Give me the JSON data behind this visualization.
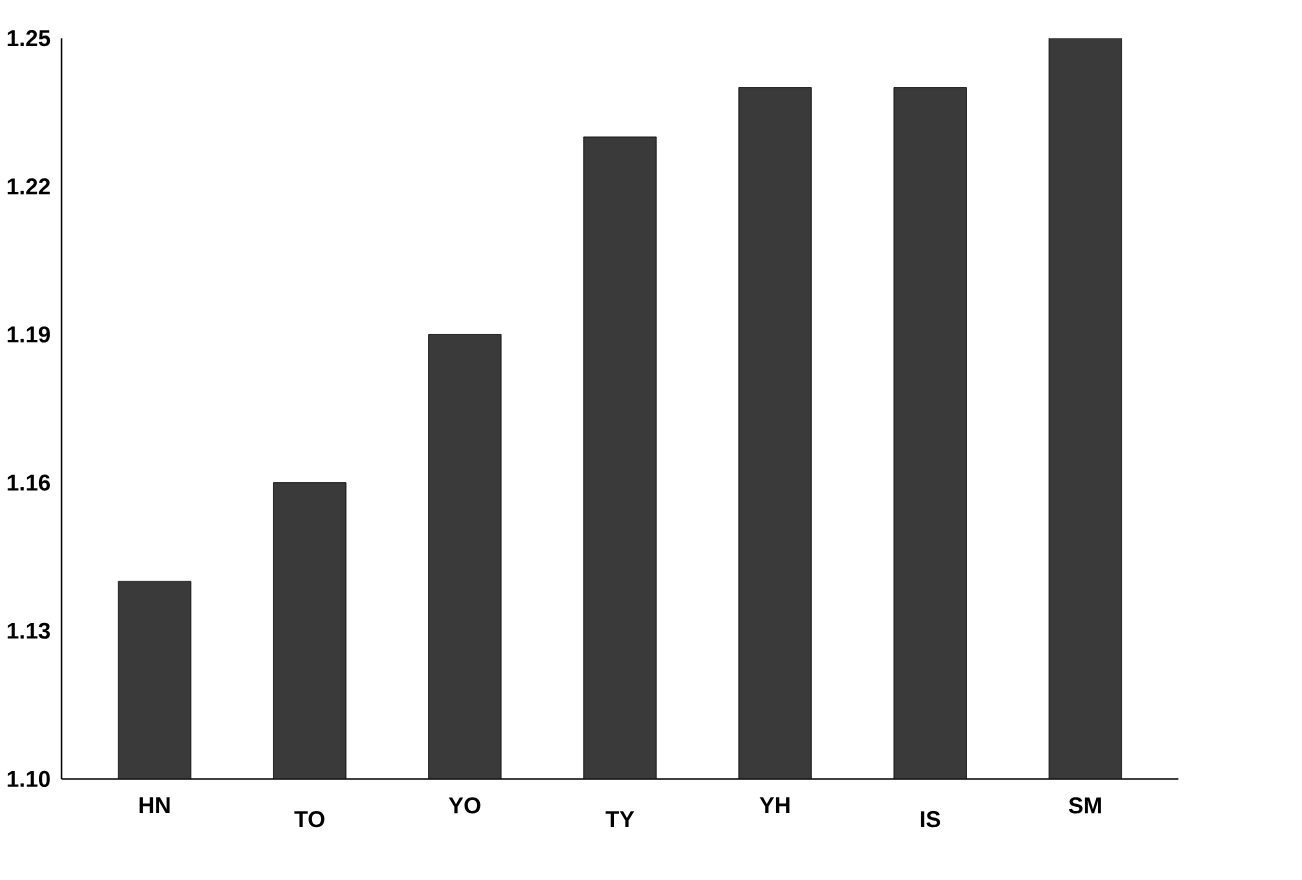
{
  "chart_data": {
    "type": "bar",
    "categories": [
      "HN",
      "TO",
      "YO",
      "TY",
      "YH",
      "IS",
      "SM"
    ],
    "values": [
      1.14,
      1.16,
      1.19,
      1.23,
      1.24,
      1.24,
      1.25
    ],
    "color": "#3a3a3a",
    "ylim": [
      1.1,
      1.25
    ],
    "yticks": [
      {
        "value": 1.1,
        "label": "1.10"
      },
      1.13,
      1.16,
      1.19,
      1.22,
      1.25
    ],
    "grid": false
  }
}
